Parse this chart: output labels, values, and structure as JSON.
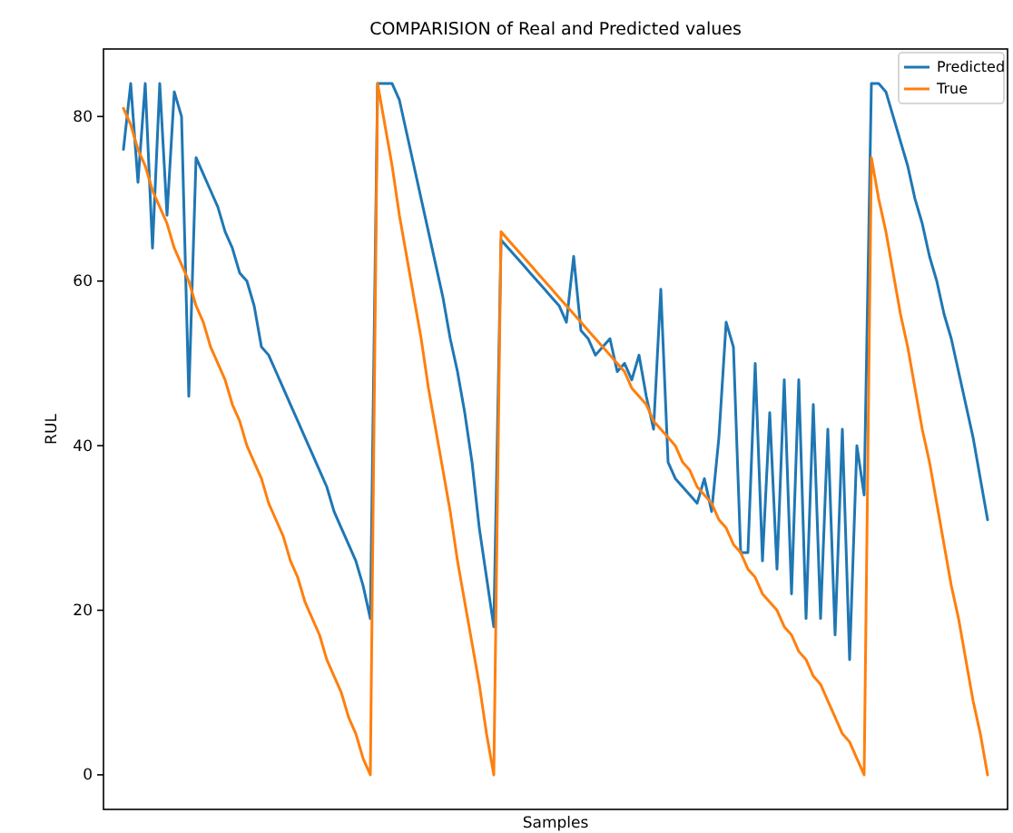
{
  "chart_data": {
    "type": "line",
    "title": "COMPARISION of Real and Predicted values",
    "xlabel": "Samples",
    "ylabel": "RUL",
    "categories": [
      null,
      null,
      null,
      null,
      null,
      null,
      null,
      null,
      null,
      null,
      null,
      null,
      null,
      null,
      null,
      null,
      null,
      null,
      null,
      null,
      null,
      null,
      null,
      null,
      null,
      null,
      null,
      null,
      null,
      null,
      null,
      null,
      null,
      null,
      null,
      null,
      null,
      null,
      null,
      null,
      null,
      null,
      null,
      null,
      null,
      null,
      null,
      null,
      null,
      null,
      null,
      null,
      null,
      null,
      null,
      null,
      null,
      null,
      null,
      null,
      null,
      null,
      null,
      null,
      null,
      null,
      null,
      null,
      null,
      null,
      null,
      null,
      null,
      null,
      null,
      null,
      null,
      null,
      null,
      null,
      null,
      null,
      null,
      null,
      null,
      null,
      null,
      null,
      null,
      null,
      null,
      null,
      null,
      null,
      null,
      null,
      null,
      null,
      null,
      null,
      null,
      null,
      null,
      null,
      null,
      null,
      null,
      null,
      null,
      null,
      null,
      null,
      null,
      null,
      null,
      null,
      null,
      null,
      null,
      null
    ],
    "series": [
      {
        "name": "Predicted",
        "color": "#1f77b4",
        "values": [
          76,
          84,
          72,
          84,
          64,
          84,
          68,
          83,
          80,
          46,
          75,
          73,
          71,
          69,
          66,
          64,
          61,
          60,
          57,
          52,
          51,
          49,
          47,
          45,
          43,
          41,
          39,
          37,
          35,
          32,
          30,
          28,
          26,
          23,
          19,
          84,
          84,
          84,
          82,
          78,
          74,
          70,
          66,
          62,
          58,
          53,
          49,
          44,
          38,
          30,
          24,
          18,
          65,
          64,
          63,
          62,
          61,
          60,
          59,
          58,
          57,
          55,
          63,
          54,
          53,
          51,
          52,
          53,
          49,
          50,
          48,
          51,
          46,
          42,
          59,
          38,
          36,
          35,
          34,
          33,
          36,
          32,
          41,
          55,
          52,
          27,
          27,
          50,
          26,
          44,
          25,
          48,
          22,
          48,
          19,
          45,
          19,
          42,
          17,
          42,
          14,
          40,
          34,
          84,
          84,
          83,
          80,
          77,
          74,
          70,
          67,
          63,
          60,
          56,
          53,
          49,
          45,
          41,
          36,
          31
        ]
      },
      {
        "name": "True",
        "color": "#ff7f0e",
        "values": [
          81,
          79,
          76,
          74,
          71,
          69,
          67,
          64,
          62,
          60,
          57,
          55,
          52,
          50,
          48,
          45,
          43,
          40,
          38,
          36,
          33,
          31,
          29,
          26,
          24,
          21,
          19,
          17,
          14,
          12,
          10,
          7,
          5,
          2,
          0,
          84,
          79,
          74,
          68,
          63,
          58,
          53,
          47,
          42,
          37,
          32,
          26,
          21,
          16,
          11,
          5,
          0,
          66,
          65,
          64,
          63,
          62,
          61,
          60,
          59,
          58,
          57,
          56,
          55,
          54,
          53,
          52,
          51,
          50,
          49,
          47,
          46,
          45,
          43,
          42,
          41,
          40,
          38,
          37,
          35,
          34,
          33,
          31,
          30,
          28,
          27,
          25,
          24,
          22,
          21,
          20,
          18,
          17,
          15,
          14,
          12,
          11,
          9,
          7,
          5,
          4,
          2,
          0,
          75,
          70,
          66,
          61,
          56,
          52,
          47,
          42,
          38,
          33,
          28,
          23,
          19,
          14,
          9,
          5,
          0
        ]
      }
    ],
    "ylim": [
      -4.2,
      88.2
    ],
    "yticks": [
      0,
      20,
      40,
      60,
      80
    ],
    "legend": "top right",
    "tick_labels": "y"
  }
}
